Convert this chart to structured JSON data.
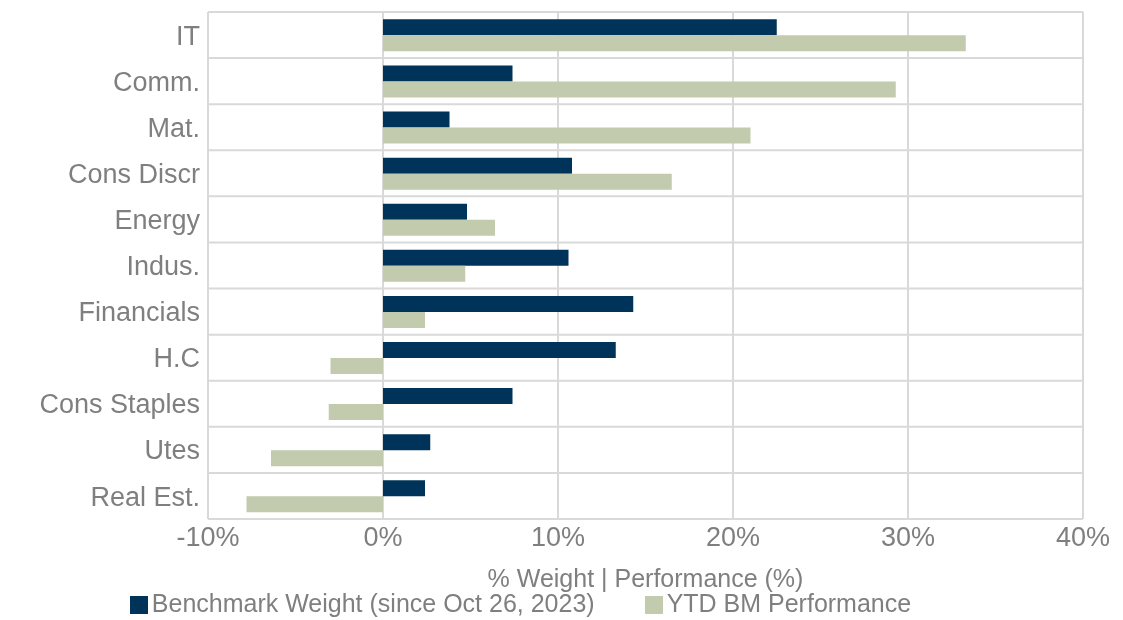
{
  "chart_data": {
    "type": "bar",
    "orientation": "horizontal",
    "xlabel": "% Weight | Performance (%)",
    "categories": [
      "IT",
      "Comm.",
      "Mat.",
      "Cons Discr",
      "Energy",
      "Indus.",
      "Financials",
      "H.C",
      "Cons Staples",
      "Utes",
      "Real Est."
    ],
    "series": [
      {
        "name": "Benchmark Weight (since Oct 26, 2023)",
        "color": "#003359",
        "values": [
          22.5,
          7.4,
          3.8,
          10.8,
          4.8,
          10.6,
          14.3,
          13.3,
          7.4,
          2.7,
          2.4
        ]
      },
      {
        "name": "YTD BM Performance",
        "color": "#c2cbad",
        "values": [
          33.3,
          29.3,
          21.0,
          16.5,
          6.4,
          4.7,
          2.4,
          -3.0,
          -3.1,
          -6.4,
          -7.8
        ]
      }
    ],
    "xlim": [
      -10,
      40
    ],
    "xticks": [
      {
        "value": -10,
        "label": "-10%"
      },
      {
        "value": 0,
        "label": "0%"
      },
      {
        "value": 10,
        "label": "10%"
      },
      {
        "value": 20,
        "label": "20%"
      },
      {
        "value": 30,
        "label": "30%"
      },
      {
        "value": 40,
        "label": "40%"
      }
    ],
    "grid": true,
    "legend": "bottom"
  }
}
